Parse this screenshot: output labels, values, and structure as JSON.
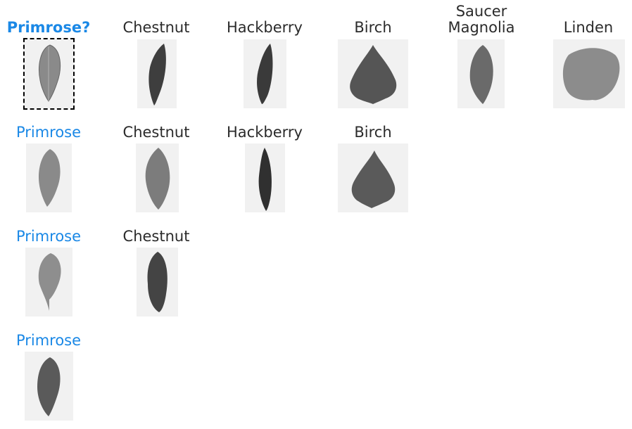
{
  "grid": {
    "query": {
      "label": "Primrose?",
      "leaf": "primrose-leaf-icon"
    },
    "rows": [
      {
        "items": [
          {
            "label": "Chestnut",
            "leaf": "chestnut-leaf-icon"
          },
          {
            "label": "Hackberry",
            "leaf": "hackberry-leaf-icon"
          },
          {
            "label": "Birch",
            "leaf": "birch-leaf-icon"
          },
          {
            "label": "Saucer\nMagnolia",
            "leaf": "magnolia-leaf-icon"
          },
          {
            "label": "Linden",
            "leaf": "linden-leaf-icon"
          }
        ]
      },
      {
        "items": [
          {
            "label": "Primrose",
            "leaf": "primrose-leaf-icon"
          },
          {
            "label": "Chestnut",
            "leaf": "chestnut-leaf-icon"
          },
          {
            "label": "Hackberry",
            "leaf": "hackberry-leaf-icon"
          },
          {
            "label": "Birch",
            "leaf": "birch-leaf-icon"
          }
        ]
      },
      {
        "items": [
          {
            "label": "Primrose",
            "leaf": "primrose-leaf-icon"
          },
          {
            "label": "Chestnut",
            "leaf": "chestnut-leaf-icon"
          }
        ]
      },
      {
        "items": [
          {
            "label": "Primrose",
            "leaf": "primrose-leaf-icon"
          }
        ]
      }
    ]
  },
  "colors": {
    "highlight": "#1a88e6",
    "text": "#2b2b2b"
  }
}
